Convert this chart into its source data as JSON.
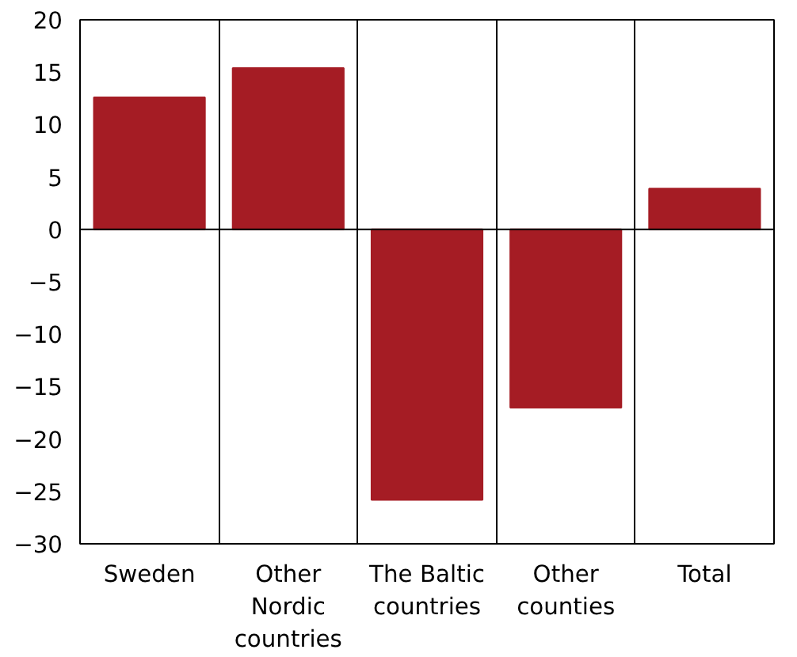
{
  "chart_data": {
    "type": "bar",
    "categories": [
      "Sweden",
      "Other Nordic countries",
      "The Baltic countries",
      "Other counties",
      "Total"
    ],
    "values": [
      12.6,
      15.4,
      -25.8,
      -17,
      3.9
    ],
    "color": "#a51c24",
    "ylim": [
      -30,
      20
    ],
    "yticks": [
      -30,
      -25,
      -20,
      -15,
      -10,
      -5,
      0,
      5,
      10,
      15,
      20
    ],
    "grid": "x",
    "ref_lines": [
      {
        "axis": "y",
        "value": 0,
        "label": null
      }
    ]
  }
}
